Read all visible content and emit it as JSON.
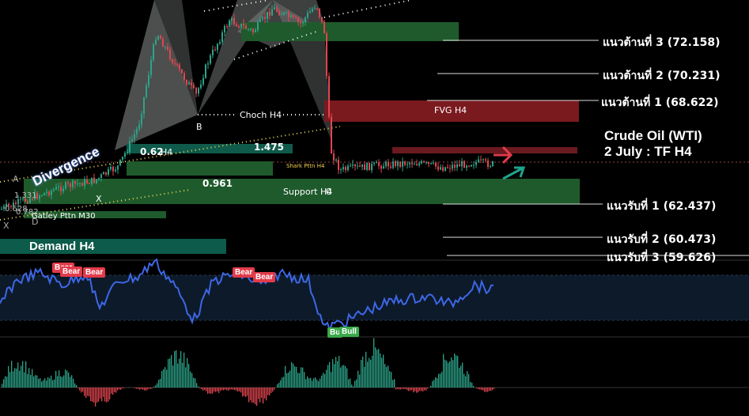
{
  "chart_data": {
    "type": "line",
    "instrument": "Crude Oil (WTI)",
    "subtitle": "2 July : TF H4",
    "resistance_levels": [
      {
        "label": "แนวต้านที่ 3 (72.158)",
        "price": 72.158
      },
      {
        "label": "แนวต้านที่ 2 (70.231)",
        "price": 70.231
      },
      {
        "label": "แนวต้านที่ 1 (68.622)",
        "price": 68.622
      }
    ],
    "support_levels": [
      {
        "label": "แนวรับที่ 1 (62.437)",
        "price": 62.437
      },
      {
        "label": "แนวรับที่ 2  (60.473)",
        "price": 60.473
      },
      {
        "label": "แนวรับที่ 3  (59.626)",
        "price": 59.626
      }
    ],
    "zones": {
      "fvg": "FVG H4",
      "support": "Support H4",
      "demand": "Demand H4",
      "choch": "Choch H4",
      "shark": "Shark Pttn H4",
      "gartley": "Gatley Pttn M30",
      "divergence": "Divergence"
    },
    "fib_labels": {
      "r1": "0.62",
      "r2": "1.475",
      "r3": "0.961",
      "h4": "H4",
      "extra_zero": "0"
    },
    "pattern_points": {
      "b": "B",
      "x": "X",
      "x2": "X",
      "d": "D",
      "a": "A"
    },
    "left_values": [
      "1.331",
      "0.628",
      "0.782"
    ],
    "oscillator_badges": {
      "bear": "Bear",
      "bull": "Bull",
      "bull_partial": "Bu"
    },
    "colors": {
      "background": "#000000",
      "up_candle": "#2ca389",
      "down_candle": "#e0454f",
      "rsi_line": "#3d67e6",
      "green_zone": "#1f5a2c",
      "fvg_zone": "#7a1a1f",
      "demand_zone": "#0d5b4a",
      "pattern_fill": "#8a8f8c",
      "arrow_up": "#1fa48c",
      "arrow_down": "#e23b4a"
    }
  }
}
